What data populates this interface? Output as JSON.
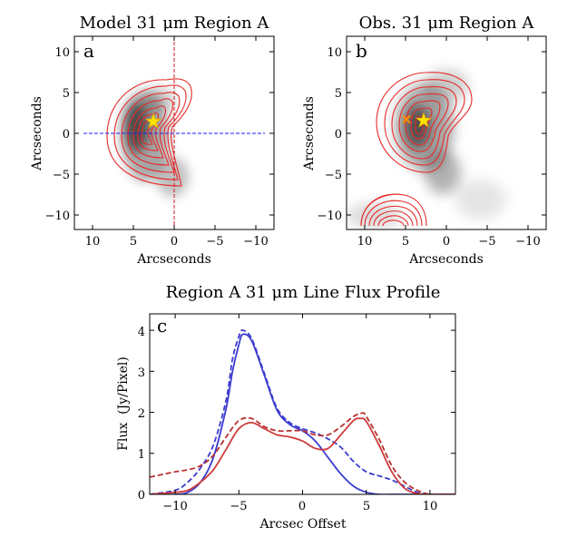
{
  "colors": {
    "blue": "#3c3cd0",
    "red": "#cc3b3b",
    "red_dashed": "#b83030",
    "yellow": "#ffe500",
    "orange": "#ff8c00",
    "contour": "#e82a2a",
    "guide_blue": "#1a1aff",
    "guide_red": "#cc1a1a"
  },
  "chart_data": [
    {
      "type": "heatmap",
      "panel_label": "a",
      "title": "Model 31 μm Region A",
      "xlabel": "Arcseconds",
      "ylabel": "Arcseconds",
      "xlim": [
        12,
        -12
      ],
      "ylim": [
        -12,
        12
      ],
      "xticks": [
        "10",
        "5",
        "0",
        "−5",
        "−10"
      ],
      "yticks": [
        "10",
        "5",
        "0",
        "−5",
        "−10"
      ],
      "star_marker": {
        "x": 2.6,
        "y": 1.6
      },
      "guide_lines": {
        "horizontal_y": 0,
        "vertical_x": 0
      }
    },
    {
      "type": "heatmap",
      "panel_label": "b",
      "title": "Obs. 31 μm Region A",
      "xlabel": "Arcseconds",
      "ylabel": "Arcseconds",
      "xlim": [
        12,
        -12
      ],
      "ylim": [
        -12,
        12
      ],
      "xticks": [
        "10",
        "5",
        "0",
        "−5",
        "−10"
      ],
      "yticks": [
        "10",
        "5",
        "0",
        "−5",
        "−10"
      ],
      "star_marker": {
        "x": 2.3,
        "y": 1.5
      },
      "cross_marker": {
        "x": 4.6,
        "y": 1.8
      }
    },
    {
      "type": "line",
      "panel_label": "c",
      "title": "Region A 31 μm Line Flux Profile",
      "xlabel": "Arcsec Offset",
      "ylabel": "Flux  (Jy/Pixel)",
      "xlim": [
        -12,
        12
      ],
      "ylim": [
        0,
        4.4
      ],
      "xticks": [
        "−10",
        "−5",
        "0",
        "5",
        "10"
      ],
      "yticks": [
        "0",
        "1",
        "2",
        "3",
        "4"
      ],
      "series": [
        {
          "style": "solid",
          "color": "blue",
          "x": [
            -12,
            -10,
            -9,
            -8,
            -7,
            -6,
            -5.5,
            -5,
            -4.7,
            -4,
            -3,
            -2,
            -1,
            0,
            1,
            2,
            3,
            4,
            5,
            6,
            7,
            8,
            9,
            10,
            11,
            12
          ],
          "y": [
            0,
            0,
            0.05,
            0.3,
            0.9,
            2.1,
            3.0,
            3.65,
            3.9,
            3.75,
            2.9,
            2.05,
            1.7,
            1.55,
            1.3,
            0.9,
            0.5,
            0.2,
            0.05,
            0,
            0,
            0,
            0,
            0,
            0,
            0
          ]
        },
        {
          "style": "dashed",
          "color": "blue",
          "x": [
            -12,
            -10,
            -9,
            -8,
            -7,
            -6,
            -5.5,
            -5,
            -4.7,
            -4,
            -3,
            -2,
            -1,
            0,
            1,
            2,
            3,
            4,
            5,
            6,
            7,
            8,
            9,
            10,
            11,
            12
          ],
          "y": [
            0,
            0.1,
            0.3,
            0.65,
            1.2,
            2.3,
            3.3,
            3.85,
            4.0,
            3.8,
            2.95,
            2.1,
            1.75,
            1.6,
            1.5,
            1.35,
            1.15,
            0.8,
            0.55,
            0.45,
            0.35,
            0.2,
            0.05,
            0,
            0,
            0
          ]
        },
        {
          "style": "solid",
          "color": "red",
          "x": [
            -12,
            -10,
            -9,
            -8,
            -7,
            -6,
            -5,
            -4,
            -3,
            -2,
            -1,
            0,
            1,
            2,
            3,
            4,
            4.5,
            5,
            6,
            7,
            8,
            9,
            10,
            11,
            12
          ],
          "y": [
            0,
            0.05,
            0.1,
            0.3,
            0.6,
            1.1,
            1.6,
            1.75,
            1.6,
            1.45,
            1.4,
            1.3,
            1.12,
            1.12,
            1.45,
            1.8,
            1.85,
            1.78,
            1.2,
            0.55,
            0.15,
            0.02,
            0,
            0,
            0
          ]
        },
        {
          "style": "dashed",
          "color": "red_dashed",
          "x": [
            -12,
            -10,
            -9,
            -8,
            -7,
            -6,
            -5,
            -4,
            -3,
            -2,
            -1,
            0,
            1,
            2,
            3,
            4,
            4.7,
            5,
            6,
            7,
            8,
            9,
            10,
            11,
            12
          ],
          "y": [
            0.42,
            0.55,
            0.6,
            0.7,
            0.95,
            1.4,
            1.8,
            1.85,
            1.65,
            1.55,
            1.55,
            1.55,
            1.45,
            1.45,
            1.65,
            1.9,
            1.98,
            1.9,
            1.35,
            0.7,
            0.3,
            0.1,
            0,
            0,
            0
          ]
        }
      ]
    }
  ]
}
